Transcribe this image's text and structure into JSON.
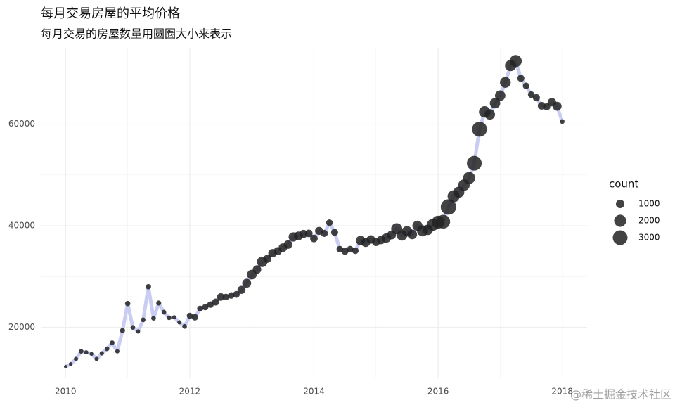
{
  "chart_data": {
    "type": "bubble-line",
    "title": "每月交易房屋的平均价格",
    "subtitle": "每月交易的房屋数量用圆圈大小来表示",
    "x": [
      2010.0,
      2010.083,
      2010.167,
      2010.25,
      2010.333,
      2010.417,
      2010.5,
      2010.583,
      2010.667,
      2010.75,
      2010.833,
      2010.917,
      2011.0,
      2011.083,
      2011.167,
      2011.25,
      2011.333,
      2011.417,
      2011.5,
      2011.583,
      2011.667,
      2011.75,
      2011.833,
      2011.917,
      2012.0,
      2012.083,
      2012.167,
      2012.25,
      2012.333,
      2012.417,
      2012.5,
      2012.583,
      2012.667,
      2012.75,
      2012.833,
      2012.917,
      2013.0,
      2013.083,
      2013.167,
      2013.25,
      2013.333,
      2013.417,
      2013.5,
      2013.583,
      2013.667,
      2013.75,
      2013.833,
      2013.917,
      2014.0,
      2014.083,
      2014.167,
      2014.25,
      2014.333,
      2014.417,
      2014.5,
      2014.583,
      2014.667,
      2014.75,
      2014.833,
      2014.917,
      2015.0,
      2015.083,
      2015.167,
      2015.25,
      2015.333,
      2015.417,
      2015.5,
      2015.583,
      2015.667,
      2015.75,
      2015.833,
      2015.917,
      2016.0,
      2016.083,
      2016.167,
      2016.25,
      2016.333,
      2016.417,
      2016.5,
      2016.583,
      2016.667,
      2016.75,
      2016.833,
      2016.917,
      2017.0,
      2017.083,
      2017.167,
      2017.25,
      2017.333,
      2017.417,
      2017.5,
      2017.583,
      2017.667,
      2017.75,
      2017.833,
      2017.917,
      2018.0
    ],
    "values": [
      12300,
      12800,
      13800,
      15300,
      15100,
      14800,
      13800,
      14900,
      15800,
      17000,
      15300,
      19400,
      24700,
      20000,
      19200,
      21500,
      28000,
      21800,
      24800,
      23000,
      21900,
      22000,
      21000,
      20200,
      22300,
      22000,
      23700,
      24000,
      24500,
      25000,
      26000,
      26000,
      26300,
      26500,
      27400,
      28700,
      30400,
      31400,
      32900,
      33500,
      34600,
      35000,
      35700,
      36300,
      37800,
      38000,
      38400,
      38500,
      37500,
      39000,
      38500,
      40600,
      38700,
      35400,
      35000,
      35400,
      35100,
      37100,
      36700,
      37300,
      36800,
      37200,
      37600,
      38200,
      39400,
      38100,
      38900,
      38300,
      40000,
      39000,
      39200,
      40200,
      40700,
      40800,
      43700,
      45800,
      46600,
      48000,
      49400,
      52300,
      59000,
      62400,
      61900,
      64100,
      65600,
      68200,
      71500,
      72400,
      69000,
      67500,
      65800,
      65200,
      63600,
      63400,
      64300,
      63500,
      60500
    ],
    "sizes": [
      150,
      200,
      250,
      300,
      250,
      200,
      250,
      250,
      300,
      300,
      250,
      350,
      400,
      300,
      250,
      300,
      400,
      300,
      350,
      300,
      300,
      250,
      250,
      300,
      500,
      600,
      500,
      550,
      600,
      700,
      800,
      600,
      600,
      650,
      900,
      1100,
      1300,
      1000,
      1500,
      900,
      1000,
      900,
      1000,
      1000,
      1200,
      1100,
      900,
      800,
      800,
      900,
      700,
      600,
      700,
      600,
      700,
      600,
      600,
      1200,
      1100,
      1000,
      900,
      1000,
      1200,
      1100,
      1700,
      1500,
      1500,
      1300,
      1400,
      1700,
      1500,
      2000,
      2300,
      2600,
      3300,
      2000,
      1700,
      1800,
      2000,
      3000,
      3100,
      1800,
      1500,
      1500,
      1500,
      1600,
      1700,
      2000,
      700,
      600,
      600,
      700,
      800,
      700,
      1000,
      1100,
      300
    ],
    "line_color": "#c9cdf2",
    "point_color": "#222222",
    "xlim": [
      2009.6,
      2018.4
    ],
    "xticks": [
      2010,
      2012,
      2014,
      2016,
      2018
    ],
    "ylim": [
      10000,
      75000
    ],
    "yticks": [
      20000,
      40000,
      60000
    ],
    "grid": true,
    "size_legend": {
      "title": "count",
      "breaks": [
        1000,
        2000,
        3000
      ]
    },
    "watermark": "@稀土掘金技术社区"
  }
}
